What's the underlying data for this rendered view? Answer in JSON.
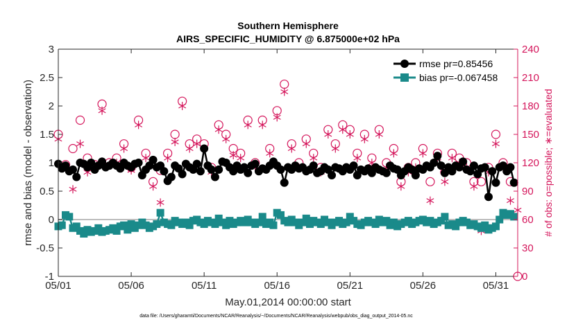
{
  "chart_data": {
    "type": "line",
    "title": "Southern Hemisphere",
    "subtitle": "AIRS_SPECIFIC_HUMIDITY @ 6.875000e+02 hPa",
    "xlabel": "May.01,2014 00:00:00 start",
    "ylabel": "rmse and bias (model - observation)",
    "y2label": "# of obs: o=possible; ∗=evaluated",
    "footnote": "data file: /Users/gharamti/Documents/NCAR/Reanalysis/~/Documents/NCAR/Reanalysis/webpub/obs_diag_output_2014-05.nc",
    "xlim": [
      0,
      31.5
    ],
    "ylim": [
      -1,
      3
    ],
    "y2lim": [
      0,
      240
    ],
    "xticks": [
      0,
      5,
      10,
      15,
      20,
      25,
      30
    ],
    "xtick_labels": [
      "05/01",
      "05/06",
      "05/11",
      "05/16",
      "05/21",
      "05/26",
      "05/31"
    ],
    "yticks": [
      -1,
      -0.5,
      0,
      0.5,
      1,
      1.5,
      2,
      2.5,
      3
    ],
    "ytick_labels": [
      "-1",
      "-0.5",
      "0",
      "0.5",
      "1",
      "1.5",
      "2",
      "2.5",
      "3"
    ],
    "y2ticks": [
      0,
      30,
      60,
      90,
      120,
      150,
      180,
      210,
      240
    ],
    "y2tick_labels": [
      "0",
      "30",
      "60",
      "90",
      "120",
      "150",
      "180",
      "210",
      "240"
    ],
    "legend_position": "top-right",
    "series": [
      {
        "name": "rmse",
        "legend": "rmse pr=0.85456",
        "color": "#000000",
        "axis": "left",
        "x": [
          0,
          0.25,
          0.5,
          0.75,
          1.0,
          1.25,
          1.5,
          1.75,
          2.0,
          2.25,
          2.5,
          2.75,
          3.0,
          3.25,
          3.5,
          3.75,
          4.0,
          4.25,
          4.5,
          4.75,
          5.0,
          5.25,
          5.5,
          5.75,
          6.0,
          6.25,
          6.5,
          6.75,
          7.0,
          7.25,
          7.5,
          7.75,
          8.0,
          8.25,
          8.5,
          8.75,
          9.0,
          9.25,
          9.5,
          9.75,
          10.0,
          10.25,
          10.5,
          10.75,
          11.0,
          11.25,
          11.5,
          11.75,
          12.0,
          12.25,
          12.5,
          12.75,
          13.0,
          13.25,
          13.5,
          13.75,
          14.0,
          14.25,
          14.5,
          14.75,
          15.0,
          15.25,
          15.5,
          15.75,
          16.0,
          16.25,
          16.5,
          16.75,
          17.0,
          17.25,
          17.5,
          17.75,
          18.0,
          18.25,
          18.5,
          18.75,
          19.0,
          19.25,
          19.5,
          19.75,
          20.0,
          20.25,
          20.5,
          20.75,
          21.0,
          21.25,
          21.5,
          21.75,
          22.0,
          22.25,
          22.5,
          22.75,
          23.0,
          23.25,
          23.5,
          23.75,
          24.0,
          24.25,
          24.5,
          24.75,
          25.0,
          25.25,
          25.5,
          25.75,
          26.0,
          26.25,
          26.5,
          26.75,
          27.0,
          27.25,
          27.5,
          27.75,
          28.0,
          28.25,
          28.5,
          28.75,
          29.0,
          29.25,
          29.5,
          29.75,
          30.0,
          30.25,
          30.5,
          30.75,
          31.0,
          31.25
        ],
        "values": [
          0.98,
          0.9,
          0.95,
          0.85,
          0.88,
          0.75,
          1.0,
          0.98,
          0.92,
          1.0,
          0.88,
          0.95,
          1.02,
          0.92,
          0.95,
          1.0,
          0.95,
          0.9,
          1.0,
          0.95,
          0.92,
          0.98,
          1.0,
          0.78,
          0.88,
          0.95,
          1.05,
          0.92,
          0.95,
          0.85,
          0.68,
          0.75,
          0.95,
          0.9,
          0.8,
          0.98,
          0.92,
          0.88,
          0.98,
          0.85,
          1.25,
          0.95,
          0.88,
          0.75,
          0.88,
          1.02,
          1.0,
          0.92,
          0.85,
          0.95,
          0.88,
          0.92,
          0.82,
          0.95,
          0.98,
          0.85,
          0.9,
          0.88,
          0.95,
          1.02,
          0.95,
          0.88,
          0.65,
          0.92,
          0.88,
          0.95,
          0.9,
          0.92,
          0.85,
          0.88,
          0.95,
          0.82,
          0.85,
          0.92,
          0.88,
          0.78,
          0.92,
          0.9,
          0.85,
          0.92,
          0.88,
          0.95,
          0.78,
          0.88,
          0.85,
          0.9,
          0.82,
          0.92,
          0.88,
          0.85,
          0.82,
          0.95,
          0.9,
          0.88,
          0.78,
          0.85,
          0.92,
          0.88,
          0.78,
          0.9,
          0.88,
          0.95,
          0.92,
          1.0,
          1.12,
          0.95,
          0.82,
          0.92,
          0.85,
          0.95,
          0.92,
          1.02,
          0.88,
          0.85,
          0.95,
          0.8,
          0.9,
          0.92,
          0.4,
          0.85,
          0.65,
          0.92,
          0.95,
          0.85,
          0.92,
          0.65
        ],
        "marker": "circle"
      },
      {
        "name": "bias",
        "legend": "bias pr=-0.067458",
        "color": "#1a8a8a",
        "axis": "left",
        "x": [
          0,
          0.25,
          0.5,
          0.75,
          1.0,
          1.25,
          1.5,
          1.75,
          2.0,
          2.25,
          2.5,
          2.75,
          3.0,
          3.25,
          3.5,
          3.75,
          4.0,
          4.25,
          4.5,
          4.75,
          5.0,
          5.25,
          5.5,
          5.75,
          6.0,
          6.25,
          6.5,
          6.75,
          7.0,
          7.25,
          7.5,
          7.75,
          8.0,
          8.25,
          8.5,
          8.75,
          9.0,
          9.25,
          9.5,
          9.75,
          10.0,
          10.25,
          10.5,
          10.75,
          11.0,
          11.25,
          11.5,
          11.75,
          12.0,
          12.25,
          12.5,
          12.75,
          13.0,
          13.25,
          13.5,
          13.75,
          14.0,
          14.25,
          14.5,
          14.75,
          15.0,
          15.25,
          15.5,
          15.75,
          16.0,
          16.25,
          16.5,
          16.75,
          17.0,
          17.25,
          17.5,
          17.75,
          18.0,
          18.25,
          18.5,
          18.75,
          19.0,
          19.25,
          19.5,
          19.75,
          20.0,
          20.25,
          20.5,
          20.75,
          21.0,
          21.25,
          21.5,
          21.75,
          22.0,
          22.25,
          22.5,
          22.75,
          23.0,
          23.25,
          23.5,
          23.75,
          24.0,
          24.25,
          24.5,
          24.75,
          25.0,
          25.25,
          25.5,
          25.75,
          26.0,
          26.25,
          26.5,
          26.75,
          27.0,
          27.25,
          27.5,
          27.75,
          28.0,
          28.25,
          28.5,
          28.75,
          29.0,
          29.25,
          29.5,
          29.75,
          30.0,
          30.25,
          30.5,
          30.75,
          31.0,
          31.25
        ],
        "values": [
          -0.12,
          -0.1,
          0.08,
          0.05,
          -0.15,
          -0.12,
          -0.2,
          -0.25,
          -0.18,
          -0.22,
          -0.2,
          -0.15,
          -0.22,
          -0.2,
          -0.18,
          -0.15,
          -0.2,
          -0.12,
          -0.1,
          -0.18,
          -0.08,
          -0.15,
          -0.1,
          -0.05,
          -0.1,
          -0.15,
          -0.12,
          -0.08,
          0.12,
          -0.05,
          -0.08,
          -0.1,
          -0.02,
          -0.05,
          -0.08,
          -0.05,
          -0.1,
          -0.02,
          0.0,
          -0.05,
          -0.08,
          -0.02,
          -0.05,
          -0.08,
          0.02,
          -0.05,
          -0.1,
          -0.02,
          -0.08,
          -0.05,
          -0.02,
          -0.05,
          0.0,
          -0.05,
          -0.08,
          -0.05,
          0.05,
          -0.08,
          -0.05,
          -0.1,
          0.12,
          0.08,
          -0.02,
          -0.05,
          0.0,
          -0.05,
          -0.1,
          -0.05,
          0.02,
          -0.08,
          -0.02,
          -0.05,
          -0.08,
          0.0,
          -0.05,
          -0.1,
          -0.05,
          -0.02,
          -0.08,
          -0.05,
          0.05,
          -0.02,
          -0.08,
          -0.1,
          -0.05,
          -0.02,
          -0.05,
          -0.08,
          0.0,
          -0.05,
          -0.02,
          -0.1,
          -0.05,
          -0.12,
          -0.08,
          -0.05,
          -0.02,
          -0.08,
          -0.05,
          -0.02,
          0.0,
          -0.05,
          -0.02,
          -0.08,
          -0.05,
          -0.02,
          0.05,
          -0.1,
          -0.08,
          -0.12,
          -0.05,
          -0.02,
          -0.05,
          -0.1,
          -0.08,
          -0.12,
          -0.15,
          -0.1,
          -0.18,
          -0.15,
          -0.12,
          0.0,
          0.12,
          0.08,
          0.1,
          0.05
        ],
        "marker": "square"
      },
      {
        "name": "obs possible",
        "color": "#d4145a",
        "axis": "right",
        "marker": "open-circle",
        "x": [
          0,
          0.5,
          1.0,
          1.5,
          2.0,
          2.5,
          3.0,
          3.5,
          4.0,
          4.5,
          5.0,
          5.5,
          6.0,
          6.5,
          7.0,
          7.5,
          8.0,
          8.5,
          9.0,
          9.5,
          10.0,
          10.5,
          11.0,
          11.5,
          12.0,
          12.5,
          13.0,
          13.5,
          14.0,
          14.5,
          15.0,
          15.5,
          16.0,
          16.5,
          17.0,
          17.5,
          18.0,
          18.5,
          19.0,
          19.5,
          20.0,
          20.5,
          21.0,
          21.5,
          22.0,
          22.5,
          23.0,
          23.5,
          24.0,
          24.5,
          25.0,
          25.5,
          26.0,
          26.5,
          27.0,
          27.5,
          28.0,
          28.5,
          29.0,
          29.5,
          30.0,
          30.5,
          31.0,
          31.5
        ],
        "values": [
          150,
          118,
          135,
          165,
          125,
          118,
          182,
          120,
          125,
          140,
          115,
          165,
          130,
          100,
          112,
          130,
          150,
          185,
          140,
          145,
          140,
          115,
          160,
          150,
          135,
          130,
          165,
          120,
          165,
          135,
          175,
          203,
          140,
          120,
          145,
          130,
          115,
          155,
          140,
          160,
          155,
          130,
          150,
          125,
          155,
          120,
          135,
          100,
          115,
          120,
          135,
          100,
          130,
          110,
          130,
          125,
          120,
          100,
          100,
          115,
          150,
          120,
          100,
          0
        ]
      },
      {
        "name": "obs evaluated",
        "color": "#d4145a",
        "axis": "right",
        "marker": "asterisk",
        "x": [
          0,
          0.5,
          1.0,
          1.5,
          2.0,
          2.5,
          3.0,
          3.5,
          4.0,
          4.5,
          5.0,
          5.5,
          6.0,
          6.5,
          7.0,
          7.5,
          8.0,
          8.5,
          9.0,
          9.5,
          10.0,
          10.5,
          11.0,
          11.5,
          12.0,
          12.5,
          13.0,
          13.5,
          14.0,
          14.5,
          15.0,
          15.5,
          16.0,
          16.5,
          17.0,
          17.5,
          18.0,
          18.5,
          19.0,
          19.5,
          20.0,
          20.5,
          21.0,
          21.5,
          22.0,
          22.5,
          23.0,
          23.5,
          24.0,
          24.5,
          25.0,
          25.5,
          26.0,
          26.5,
          27.0,
          27.5,
          28.0,
          28.5,
          29.0,
          29.5,
          30.0,
          30.5,
          31.0,
          31.5
        ],
        "values": [
          145,
          115,
          92,
          140,
          110,
          115,
          175,
          118,
          120,
          135,
          112,
          160,
          125,
          95,
          78,
          125,
          142,
          180,
          135,
          140,
          135,
          110,
          155,
          145,
          128,
          125,
          160,
          115,
          160,
          130,
          168,
          195,
          135,
          115,
          140,
          125,
          110,
          150,
          135,
          155,
          150,
          125,
          145,
          120,
          150,
          115,
          130,
          95,
          110,
          115,
          130,
          80,
          125,
          100,
          125,
          120,
          115,
          95,
          48,
          110,
          140,
          115,
          80,
          70
        ]
      }
    ]
  }
}
